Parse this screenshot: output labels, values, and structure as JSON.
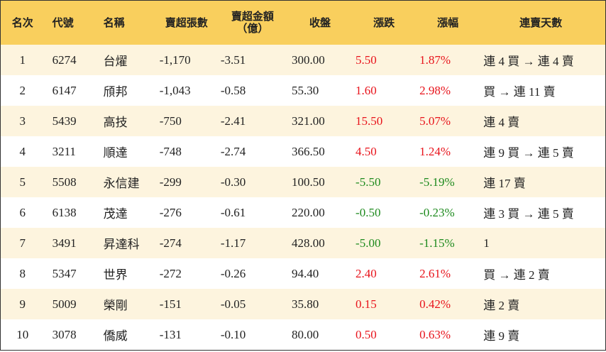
{
  "table": {
    "header": [
      "名次",
      "代號",
      "名稱",
      "賣超張數",
      "賣超金額\n（億）",
      "收盤",
      "漲跌",
      "漲幅",
      "連賣天數"
    ],
    "rows": [
      [
        "1",
        "6274",
        "台燿",
        "-1,170",
        "-3.51",
        "300.00",
        "5.50",
        "1.87%",
        "連 4 買 → 連 4 賣"
      ],
      [
        "2",
        "6147",
        "頎邦",
        "-1,043",
        "-0.58",
        "55.30",
        "1.60",
        "2.98%",
        "買 → 連 11 賣"
      ],
      [
        "3",
        "5439",
        "高技",
        "-750",
        "-2.41",
        "321.00",
        "15.50",
        "5.07%",
        "連 4 賣"
      ],
      [
        "4",
        "3211",
        "順達",
        "-748",
        "-2.74",
        "366.50",
        "4.50",
        "1.24%",
        "連 9 買 → 連 5 賣"
      ],
      [
        "5",
        "5508",
        "永信建",
        "-299",
        "-0.30",
        "100.50",
        "-5.50",
        "-5.19%",
        "連 17 賣"
      ],
      [
        "6",
        "6138",
        "茂達",
        "-276",
        "-0.61",
        "220.00",
        "-0.50",
        "-0.23%",
        "連 3 買 → 連 5 賣"
      ],
      [
        "7",
        "3491",
        "昇達科",
        "-274",
        "-1.17",
        "428.00",
        "-5.00",
        "-1.15%",
        "1"
      ],
      [
        "8",
        "5347",
        "世界",
        "-272",
        "-0.26",
        "94.40",
        "2.40",
        "2.61%",
        "買 → 連 2 賣"
      ],
      [
        "9",
        "5009",
        "榮剛",
        "-151",
        "-0.05",
        "35.80",
        "0.15",
        "0.42%",
        "連 2 賣"
      ],
      [
        "10",
        "3078",
        "僑威",
        "-131",
        "-0.10",
        "80.00",
        "0.50",
        "0.63%",
        "連 9 賣"
      ]
    ]
  }
}
